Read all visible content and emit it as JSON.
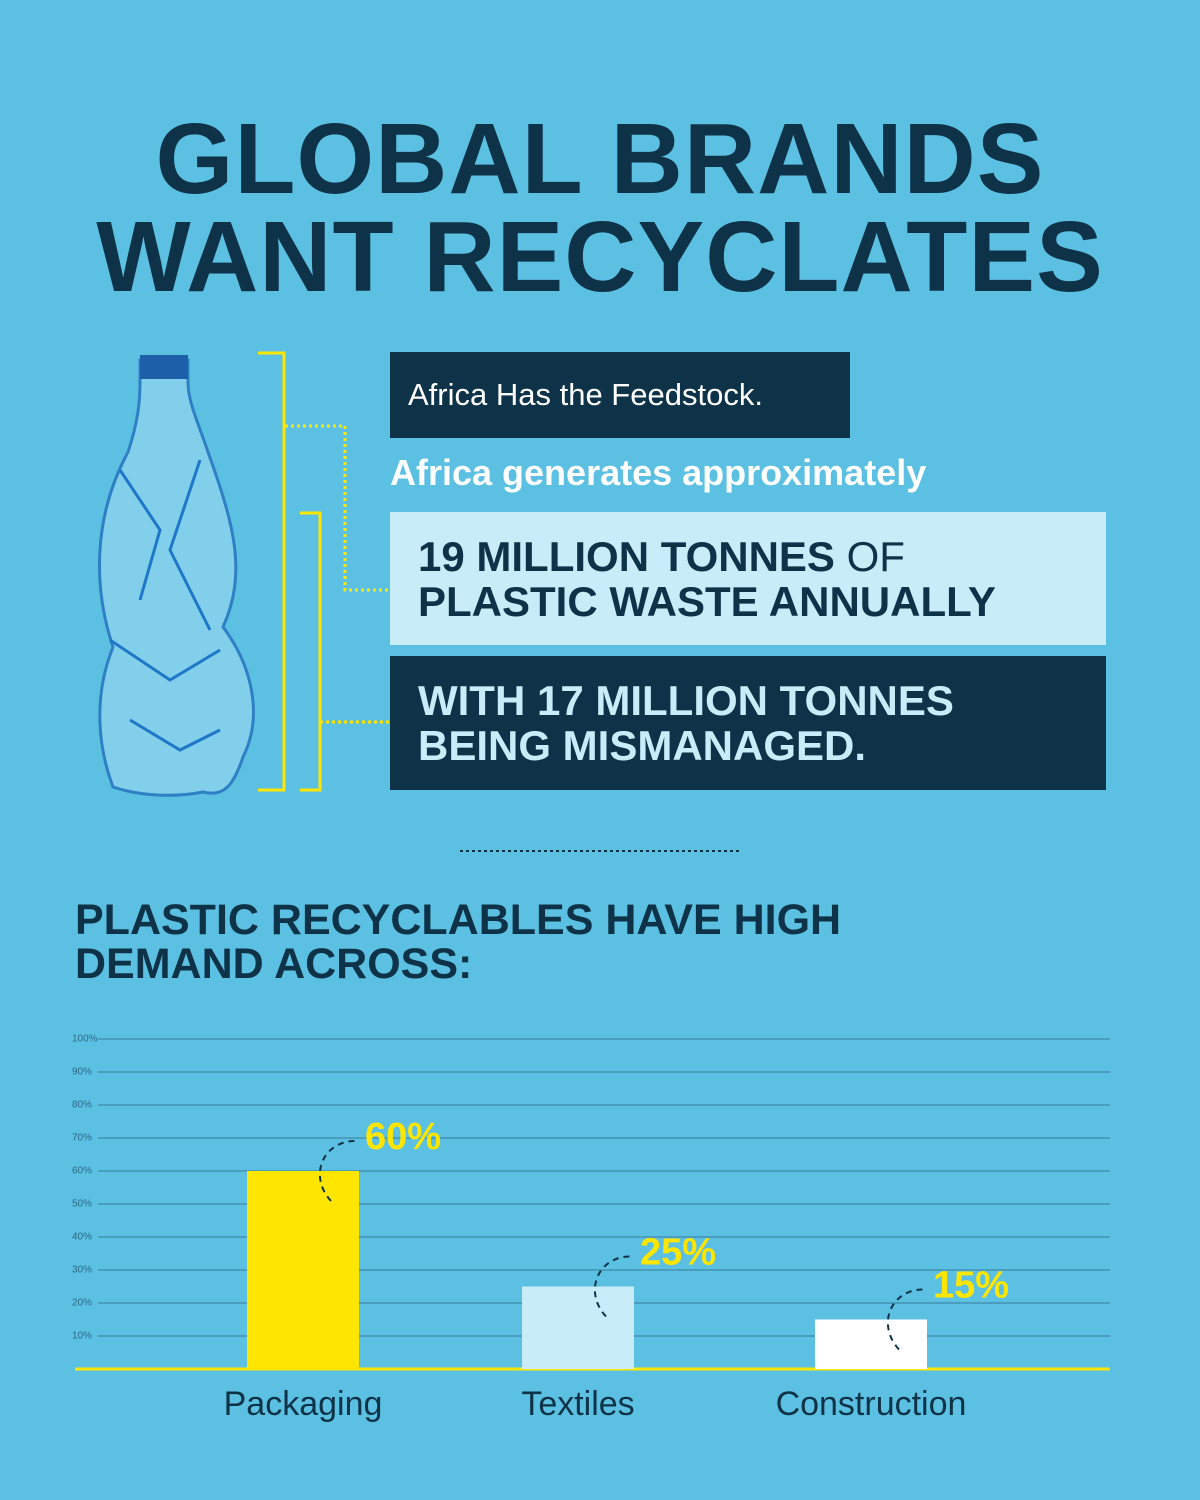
{
  "title": "GLOBAL BRANDS WANT RECYCLATES",
  "feedstock_label": "Africa Has the Feedstock.",
  "intro": "Africa generates approximately",
  "stat1": {
    "lead": "19 MILLION TONNES",
    "of": "OF",
    "rest": "PLASTIC WASTE ANNUALLY"
  },
  "stat2": {
    "line1": "WITH 17 MILLION TONNES",
    "line2": "BEING MISMANAGED."
  },
  "chart_data": {
    "type": "bar",
    "title": "PLASTIC RECYCLABLES HAVE HIGH DEMAND ACROSS:",
    "categories": [
      "Packaging",
      "Textiles",
      "Construction"
    ],
    "values": [
      60,
      25,
      15
    ],
    "value_labels": [
      "60%",
      "25%",
      "15%"
    ],
    "colors": [
      "#ffe600",
      "#c8ecf8",
      "#ffffff"
    ],
    "label_color": "#ffe600",
    "ylim": [
      0,
      100
    ],
    "yticks": [
      {
        "value": 10,
        "label": "10%"
      },
      {
        "value": 20,
        "label": "20%"
      },
      {
        "value": 30,
        "label": "30%"
      },
      {
        "value": 40,
        "label": "40%"
      },
      {
        "value": 50,
        "label": "50%"
      },
      {
        "value": 60,
        "label": "60%"
      },
      {
        "value": 70,
        "label": "70%"
      },
      {
        "value": 80,
        "label": "80%"
      },
      {
        "value": 90,
        "label": "90%"
      },
      {
        "value": 100,
        "label": "100%"
      }
    ],
    "grid": true
  }
}
